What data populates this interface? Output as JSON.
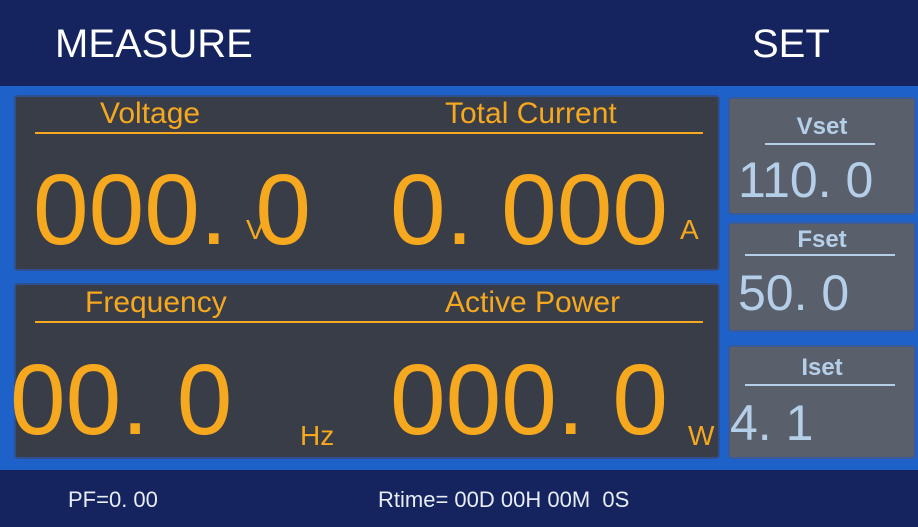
{
  "header": {
    "left": "MEASURE",
    "right": "SET"
  },
  "measure": [
    {
      "items": [
        {
          "label": "Voltage",
          "value": "000. 0",
          "unit": "V"
        },
        {
          "label": "Total Current",
          "value": "0. 000",
          "unit": "A"
        }
      ]
    },
    {
      "items": [
        {
          "label": "Frequency",
          "value": "00. 0",
          "unit": "Hz"
        },
        {
          "label": "Active Power",
          "value": "000. 0",
          "unit": "W"
        }
      ]
    }
  ],
  "set": [
    {
      "label": "Vset",
      "value": "110. 0"
    },
    {
      "label": "Fset",
      "value": "50. 0"
    },
    {
      "label": "Iset",
      "value": "4. 1"
    }
  ],
  "footer": {
    "pf": "PF=0. 00",
    "rtime": "Rtime= 00D 00H 00M  0S"
  }
}
